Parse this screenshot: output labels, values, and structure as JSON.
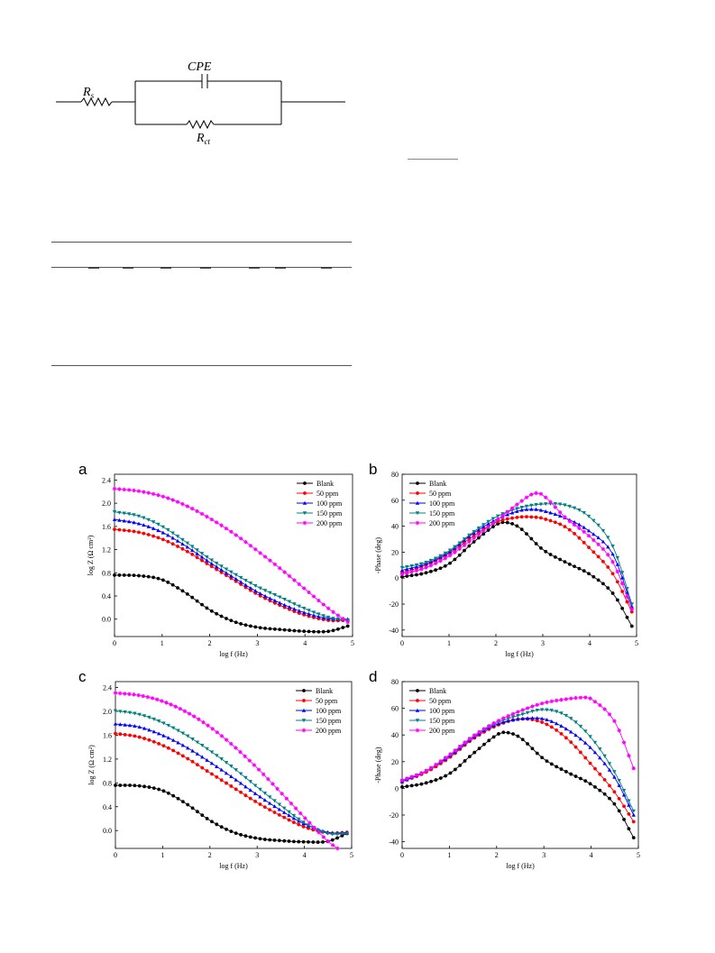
{
  "circuit": {
    "labels": {
      "rs": "R",
      "rs_sub": "s",
      "cpe": "CPE",
      "rct": "R",
      "rct_sub": "ct"
    }
  },
  "colors": {
    "series": [
      "#000000",
      "#ff0000",
      "#0000ff",
      "#008080",
      "#ff00ff"
    ]
  },
  "chart_data": [
    {
      "id": "a",
      "panel_label": "a",
      "type": "line",
      "xlabel": "log f (Hz)",
      "ylabel": "log Z (Ω cm²)",
      "xlim": [
        0,
        5
      ],
      "ylim": [
        -0.3,
        2.5
      ],
      "xticks": [
        "0",
        "1",
        "2",
        "3",
        "4",
        "5"
      ],
      "yticks": [
        "0.0",
        "0.4",
        "0.8",
        "1.2",
        "1.6",
        "2.0",
        "2.4"
      ],
      "ytick_values": [
        0,
        0.4,
        0.8,
        1.2,
        1.6,
        2.0,
        2.4
      ],
      "legend": "top-right",
      "series": [
        {
          "name": "Blank",
          "marker": "circle",
          "x": [
            0,
            0.5,
            1.0,
            1.5,
            2.0,
            2.5,
            3.0,
            3.5,
            4.0,
            4.5,
            4.9
          ],
          "y": [
            0.76,
            0.75,
            0.68,
            0.45,
            0.16,
            -0.04,
            -0.14,
            -0.18,
            -0.21,
            -0.21,
            -0.12
          ]
        },
        {
          "name": "50 ppm",
          "marker": "circle",
          "x": [
            0,
            0.5,
            1.0,
            1.5,
            2.0,
            2.5,
            3.0,
            3.5,
            4.0,
            4.5,
            4.9
          ],
          "y": [
            1.55,
            1.5,
            1.38,
            1.18,
            0.93,
            0.68,
            0.43,
            0.23,
            0.07,
            -0.02,
            -0.02
          ]
        },
        {
          "name": "100 ppm",
          "marker": "triangle-up",
          "x": [
            0,
            0.5,
            1.0,
            1.5,
            2.0,
            2.5,
            3.0,
            3.5,
            4.0,
            4.5,
            4.9
          ],
          "y": [
            1.72,
            1.65,
            1.5,
            1.26,
            0.98,
            0.72,
            0.47,
            0.27,
            0.11,
            0.01,
            0.0
          ]
        },
        {
          "name": "150 ppm",
          "marker": "triangle-down",
          "x": [
            0,
            0.5,
            1.0,
            1.5,
            2.0,
            2.5,
            3.0,
            3.5,
            4.0,
            4.5,
            4.9
          ],
          "y": [
            1.85,
            1.78,
            1.6,
            1.33,
            1.04,
            0.79,
            0.56,
            0.37,
            0.18,
            0.03,
            -0.02
          ]
        },
        {
          "name": "200 ppm",
          "marker": "star",
          "x": [
            0,
            0.5,
            1.0,
            1.5,
            2.0,
            2.5,
            3.0,
            3.5,
            4.0,
            4.5,
            4.9
          ],
          "y": [
            2.25,
            2.21,
            2.12,
            1.96,
            1.74,
            1.48,
            1.18,
            0.86,
            0.52,
            0.18,
            -0.05
          ]
        }
      ]
    },
    {
      "id": "b",
      "panel_label": "b",
      "type": "line",
      "xlabel": "log f (Hz)",
      "ylabel": "-Phase (deg)",
      "xlim": [
        0,
        5
      ],
      "ylim": [
        -45,
        80
      ],
      "xticks": [
        "0",
        "1",
        "2",
        "3",
        "4",
        "5"
      ],
      "yticks": [
        "-40",
        "-20",
        "0",
        "20",
        "40",
        "60",
        "80"
      ],
      "ytick_values": [
        -40,
        -20,
        0,
        20,
        40,
        60,
        80
      ],
      "legend": "top-left",
      "series": [
        {
          "name": "Blank",
          "marker": "circle",
          "x": [
            0,
            0.5,
            1.0,
            1.5,
            2.0,
            2.2,
            2.5,
            3.0,
            3.5,
            4.0,
            4.5,
            4.9
          ],
          "y": [
            1,
            4,
            11,
            27,
            41,
            43,
            39,
            22,
            12,
            3,
            -12,
            -37
          ]
        },
        {
          "name": "50 ppm",
          "marker": "circle",
          "x": [
            0,
            0.5,
            1.0,
            1.5,
            2.0,
            2.5,
            2.8,
            3.0,
            3.5,
            4.0,
            4.5,
            4.9
          ],
          "y": [
            4,
            10,
            19,
            32,
            43,
            47,
            47,
            46,
            39,
            23,
            3,
            -26
          ]
        },
        {
          "name": "100 ppm",
          "marker": "triangle-up",
          "x": [
            0,
            0.5,
            1.0,
            1.5,
            2.0,
            2.5,
            2.8,
            3.0,
            3.5,
            4.0,
            4.5,
            4.9
          ],
          "y": [
            6,
            11,
            20,
            34,
            45,
            52,
            53,
            52,
            46,
            36,
            18,
            -22
          ]
        },
        {
          "name": "150 ppm",
          "marker": "triangle-down",
          "x": [
            0,
            0.5,
            1.0,
            1.5,
            2.0,
            2.5,
            3.0,
            3.5,
            4.0,
            4.5,
            4.9
          ],
          "y": [
            8,
            12,
            21,
            35,
            47,
            54,
            57,
            56,
            47,
            24,
            -20
          ]
        },
        {
          "name": "200 ppm",
          "marker": "star",
          "x": [
            0,
            0.5,
            1.0,
            1.5,
            2.0,
            2.5,
            2.8,
            3.0,
            3.5,
            4.0,
            4.5,
            4.9
          ],
          "y": [
            3,
            8,
            17,
            30,
            44,
            58,
            65,
            64,
            46,
            32,
            12,
            -24
          ]
        }
      ]
    },
    {
      "id": "c",
      "panel_label": "c",
      "type": "line",
      "xlabel": "log f (Hz)",
      "ylabel": "log Z (Ω cm²)",
      "xlim": [
        0,
        5
      ],
      "ylim": [
        -0.3,
        2.5
      ],
      "xticks": [
        "0",
        "1",
        "2",
        "3",
        "4",
        "5"
      ],
      "yticks": [
        "0.0",
        "0.4",
        "0.8",
        "1.2",
        "1.6",
        "2.0",
        "2.4"
      ],
      "ytick_values": [
        0,
        0.4,
        0.8,
        1.2,
        1.6,
        2.0,
        2.4
      ],
      "legend": "top-right",
      "series": [
        {
          "name": "Blank",
          "marker": "circle",
          "x": [
            0,
            0.5,
            1.0,
            1.5,
            2.0,
            2.5,
            3.0,
            3.5,
            4.0,
            4.5,
            4.9
          ],
          "y": [
            0.76,
            0.75,
            0.67,
            0.45,
            0.17,
            -0.03,
            -0.13,
            -0.17,
            -0.19,
            -0.18,
            -0.05
          ]
        },
        {
          "name": "50 ppm",
          "marker": "circle",
          "x": [
            0,
            0.5,
            1.0,
            1.5,
            2.0,
            2.5,
            3.0,
            3.5,
            4.0,
            4.5,
            4.9
          ],
          "y": [
            1.63,
            1.57,
            1.43,
            1.22,
            0.97,
            0.72,
            0.47,
            0.25,
            0.06,
            -0.04,
            -0.03
          ]
        },
        {
          "name": "100 ppm",
          "marker": "triangle-up",
          "x": [
            0,
            0.5,
            1.0,
            1.5,
            2.0,
            2.5,
            3.0,
            3.5,
            4.0,
            4.5,
            4.9
          ],
          "y": [
            1.79,
            1.74,
            1.6,
            1.4,
            1.15,
            0.88,
            0.6,
            0.34,
            0.11,
            -0.03,
            -0.04
          ]
        },
        {
          "name": "150 ppm",
          "marker": "triangle-down",
          "x": [
            0,
            0.5,
            1.0,
            1.5,
            2.0,
            2.5,
            3.0,
            3.5,
            4.0,
            4.5,
            4.9
          ],
          "y": [
            2.01,
            1.95,
            1.81,
            1.6,
            1.34,
            1.05,
            0.73,
            0.42,
            0.13,
            -0.05,
            -0.05
          ]
        },
        {
          "name": "200 ppm",
          "marker": "star",
          "x": [
            0,
            0.5,
            1.0,
            1.5,
            2.0,
            2.5,
            3.0,
            3.5,
            4.0,
            4.5,
            4.7
          ],
          "y": [
            2.31,
            2.27,
            2.17,
            1.99,
            1.74,
            1.42,
            1.05,
            0.64,
            0.22,
            -0.18,
            -0.3
          ]
        }
      ]
    },
    {
      "id": "d",
      "panel_label": "d",
      "type": "line",
      "xlabel": "log f (Hz)",
      "ylabel": "-Phase (deg)",
      "xlim": [
        0,
        5
      ],
      "ylim": [
        -45,
        80
      ],
      "xticks": [
        "0",
        "1",
        "2",
        "3",
        "4",
        "5"
      ],
      "yticks": [
        "-40",
        "-20",
        "0",
        "20",
        "40",
        "60",
        "80"
      ],
      "ytick_values": [
        -40,
        -20,
        0,
        20,
        40,
        60,
        80
      ],
      "legend": "top-left",
      "series": [
        {
          "name": "Blank",
          "marker": "circle",
          "x": [
            0,
            0.5,
            1.0,
            1.5,
            2.0,
            2.2,
            2.5,
            3.0,
            3.5,
            4.0,
            4.5,
            4.9
          ],
          "y": [
            1,
            4,
            11,
            26,
            40,
            42,
            38,
            22,
            12,
            3,
            -12,
            -37
          ]
        },
        {
          "name": "50 ppm",
          "marker": "circle",
          "x": [
            0,
            0.5,
            1.0,
            1.5,
            2.0,
            2.5,
            3.0,
            3.5,
            4.0,
            4.5,
            4.9
          ],
          "y": [
            5,
            12,
            23,
            37,
            47,
            52,
            49,
            37,
            18,
            -3,
            -25
          ]
        },
        {
          "name": "100 ppm",
          "marker": "triangle-up",
          "x": [
            0,
            0.5,
            1.0,
            1.5,
            2.0,
            2.5,
            3.0,
            3.5,
            4.0,
            4.5,
            4.9
          ],
          "y": [
            5,
            13,
            24,
            38,
            48,
            52,
            52,
            44,
            30,
            8,
            -20
          ]
        },
        {
          "name": "150 ppm",
          "marker": "triangle-down",
          "x": [
            0,
            0.5,
            1.0,
            1.5,
            2.0,
            2.5,
            3.0,
            3.5,
            4.0,
            4.5,
            4.9
          ],
          "y": [
            6,
            13,
            25,
            39,
            49,
            55,
            59,
            54,
            38,
            12,
            -17
          ]
        },
        {
          "name": "200 ppm",
          "marker": "star",
          "x": [
            0,
            0.5,
            1.0,
            1.5,
            2.0,
            2.5,
            3.0,
            3.5,
            3.8,
            4.0,
            4.5,
            4.9
          ],
          "y": [
            6,
            13,
            25,
            39,
            50,
            58,
            64,
            67,
            68,
            67,
            50,
            15
          ]
        }
      ]
    }
  ]
}
